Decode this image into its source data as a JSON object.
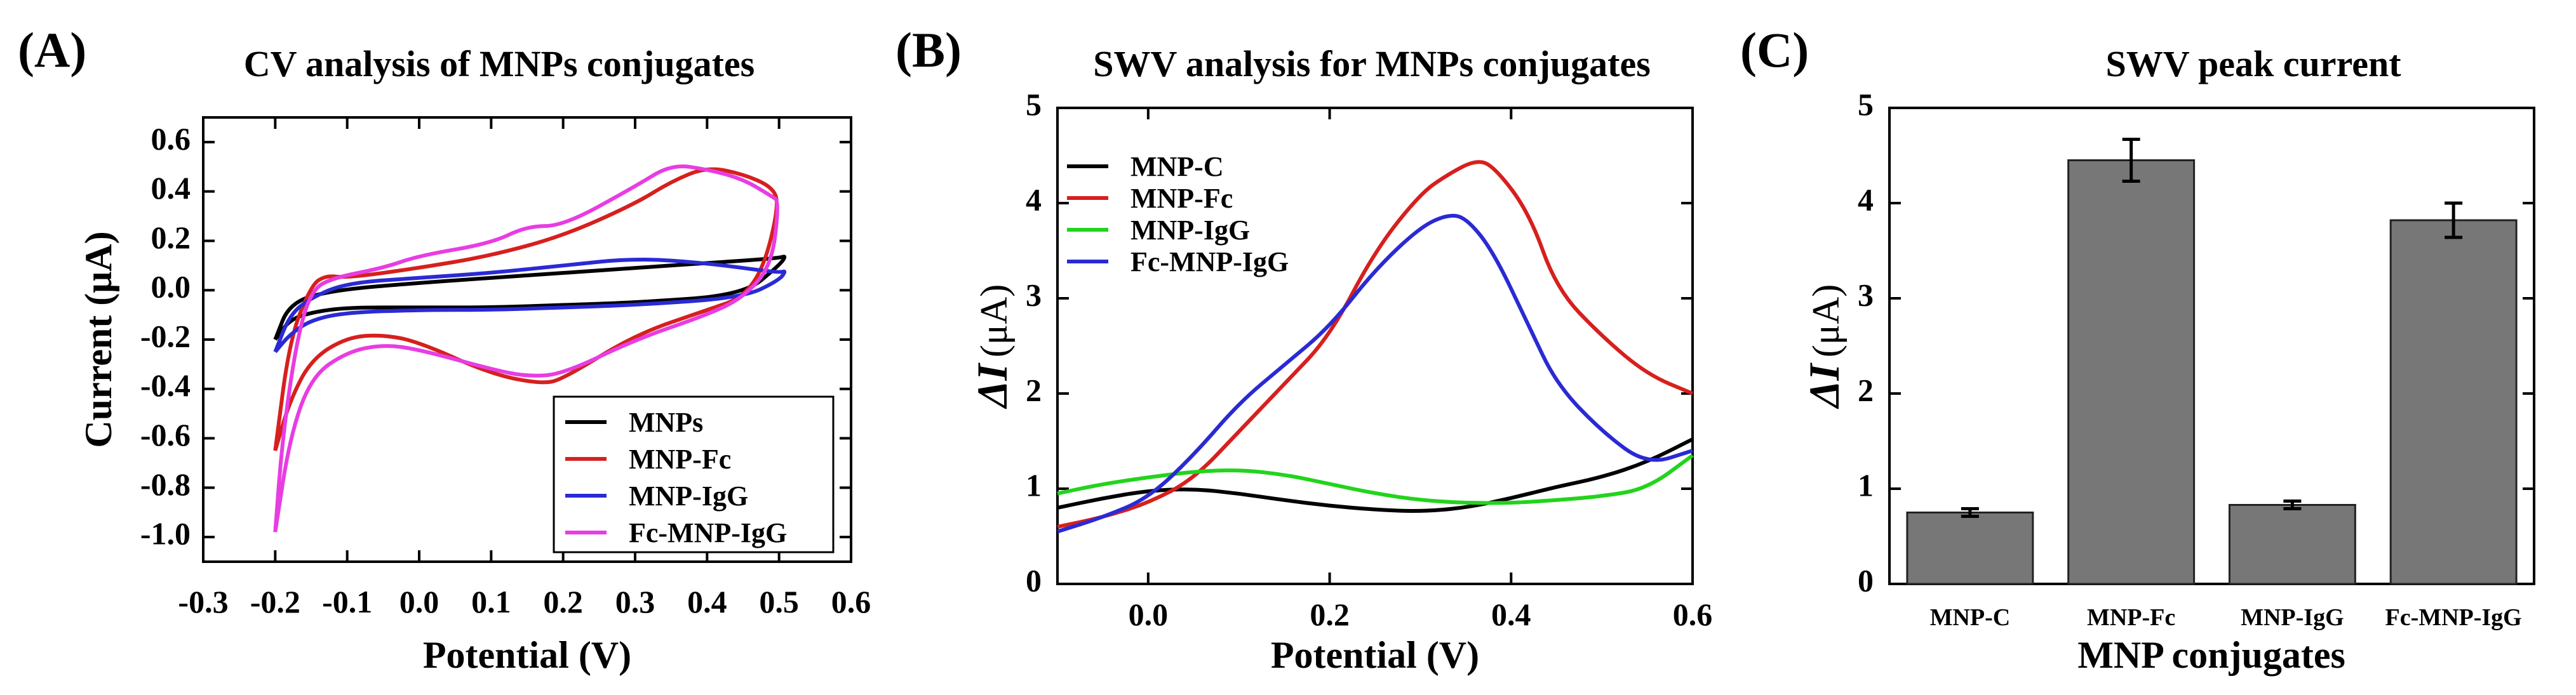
{
  "panels": {
    "a": {
      "letter": "(A)"
    },
    "b": {
      "letter": "(B)"
    },
    "c": {
      "letter": "(C)"
    }
  },
  "chart_data": [
    {
      "type": "line",
      "title": "CV analysis of MNPs conjugates",
      "xlabel": "Potential (V)",
      "ylabel": "Current (μA)",
      "xlim": [
        -0.3,
        0.6
      ],
      "ylim": [
        -1.1,
        0.7
      ],
      "xticks": [
        "-0.3",
        "-0.2",
        "-0.1",
        "0.0",
        "0.1",
        "0.2",
        "0.3",
        "0.4",
        "0.5",
        "0.6"
      ],
      "yticks": [
        "0.6",
        "0.4",
        "0.2",
        "0.0",
        "-0.2",
        "-0.4",
        "-0.6",
        "-0.8",
        "-1.0"
      ],
      "legend_position": "bottom-right",
      "series": [
        {
          "name": "MNPs",
          "color": "#000000",
          "points": [
            [
              -0.2,
              -0.2
            ],
            [
              -0.18,
              -0.05
            ],
            [
              -0.12,
              0.0
            ],
            [
              0.0,
              0.03
            ],
            [
              0.1,
              0.05
            ],
            [
              0.2,
              0.07
            ],
            [
              0.3,
              0.09
            ],
            [
              0.4,
              0.11
            ],
            [
              0.5,
              0.13
            ],
            [
              0.51,
              0.14
            ],
            [
              0.5,
              0.1
            ],
            [
              0.45,
              -0.02
            ],
            [
              0.3,
              -0.05
            ],
            [
              0.2,
              -0.06
            ],
            [
              0.1,
              -0.07
            ],
            [
              0.0,
              -0.07
            ],
            [
              -0.1,
              -0.07
            ],
            [
              -0.15,
              -0.09
            ],
            [
              -0.18,
              -0.12
            ],
            [
              -0.2,
              -0.2
            ]
          ]
        },
        {
          "name": "MNP-Fc",
          "color": "#d6201e",
          "points": [
            [
              -0.2,
              -0.65
            ],
            [
              -0.18,
              -0.2
            ],
            [
              -0.15,
              0.02
            ],
            [
              -0.13,
              0.06
            ],
            [
              -0.1,
              0.05
            ],
            [
              0.0,
              0.09
            ],
            [
              0.1,
              0.14
            ],
            [
              0.2,
              0.22
            ],
            [
              0.3,
              0.35
            ],
            [
              0.35,
              0.44
            ],
            [
              0.4,
              0.5
            ],
            [
              0.45,
              0.47
            ],
            [
              0.49,
              0.42
            ],
            [
              0.5,
              0.35
            ],
            [
              0.48,
              0.1
            ],
            [
              0.45,
              -0.03
            ],
            [
              0.4,
              -0.08
            ],
            [
              0.3,
              -0.18
            ],
            [
              0.2,
              -0.36
            ],
            [
              0.17,
              -0.38
            ],
            [
              0.1,
              -0.34
            ],
            [
              0.0,
              -0.21
            ],
            [
              -0.05,
              -0.18
            ],
            [
              -0.1,
              -0.19
            ],
            [
              -0.15,
              -0.28
            ],
            [
              -0.18,
              -0.45
            ],
            [
              -0.2,
              -0.65
            ]
          ]
        },
        {
          "name": "MNP-IgG",
          "color": "#2a2ad4",
          "points": [
            [
              -0.2,
              -0.25
            ],
            [
              -0.18,
              -0.1
            ],
            [
              -0.15,
              -0.03
            ],
            [
              -0.1,
              0.03
            ],
            [
              0.0,
              0.05
            ],
            [
              0.1,
              0.07
            ],
            [
              0.2,
              0.1
            ],
            [
              0.3,
              0.13
            ],
            [
              0.4,
              0.11
            ],
            [
              0.5,
              0.07
            ],
            [
              0.51,
              0.08
            ],
            [
              0.5,
              0.04
            ],
            [
              0.45,
              -0.03
            ],
            [
              0.3,
              -0.06
            ],
            [
              0.2,
              -0.07
            ],
            [
              0.1,
              -0.08
            ],
            [
              0.0,
              -0.08
            ],
            [
              -0.1,
              -0.09
            ],
            [
              -0.15,
              -0.12
            ],
            [
              -0.18,
              -0.18
            ],
            [
              -0.2,
              -0.25
            ]
          ]
        },
        {
          "name": "Fc-MNP-IgG",
          "color": "#e83de2",
          "points": [
            [
              -0.2,
              -0.98
            ],
            [
              -0.19,
              -0.6
            ],
            [
              -0.17,
              -0.2
            ],
            [
              -0.15,
              0.0
            ],
            [
              -0.12,
              0.05
            ],
            [
              -0.05,
              0.09
            ],
            [
              0.0,
              0.14
            ],
            [
              0.1,
              0.19
            ],
            [
              0.15,
              0.26
            ],
            [
              0.2,
              0.26
            ],
            [
              0.3,
              0.42
            ],
            [
              0.35,
              0.51
            ],
            [
              0.4,
              0.49
            ],
            [
              0.45,
              0.45
            ],
            [
              0.49,
              0.38
            ],
            [
              0.5,
              0.36
            ],
            [
              0.49,
              0.1
            ],
            [
              0.45,
              -0.03
            ],
            [
              0.4,
              -0.1
            ],
            [
              0.3,
              -0.2
            ],
            [
              0.2,
              -0.34
            ],
            [
              0.15,
              -0.35
            ],
            [
              0.1,
              -0.32
            ],
            [
              0.0,
              -0.24
            ],
            [
              -0.05,
              -0.22
            ],
            [
              -0.1,
              -0.25
            ],
            [
              -0.15,
              -0.35
            ],
            [
              -0.18,
              -0.6
            ],
            [
              -0.2,
              -0.98
            ]
          ]
        }
      ]
    },
    {
      "type": "line",
      "title": "SWV analysis for MNPs conjugates",
      "xlabel": "Potential (V)",
      "ylabel": "ΔI (μA)",
      "ylabel_symbol": "ΔI",
      "ylabel_unit": "(μA)",
      "xlim": [
        -0.1,
        0.6
      ],
      "ylim": [
        0,
        5
      ],
      "xticks": [
        "0.0",
        "0.2",
        "0.4",
        "0.6"
      ],
      "yticks": [
        "0",
        "1",
        "2",
        "3",
        "4",
        "5"
      ],
      "legend_position": "top-left",
      "series": [
        {
          "name": "MNP-C",
          "color": "#000000",
          "points": [
            [
              -0.1,
              0.8
            ],
            [
              -0.05,
              0.9
            ],
            [
              0.0,
              0.98
            ],
            [
              0.05,
              1.0
            ],
            [
              0.1,
              0.95
            ],
            [
              0.15,
              0.88
            ],
            [
              0.2,
              0.82
            ],
            [
              0.25,
              0.78
            ],
            [
              0.3,
              0.76
            ],
            [
              0.35,
              0.8
            ],
            [
              0.4,
              0.9
            ],
            [
              0.45,
              1.02
            ],
            [
              0.5,
              1.12
            ],
            [
              0.55,
              1.28
            ],
            [
              0.6,
              1.52
            ]
          ]
        },
        {
          "name": "MNP-Fc",
          "color": "#d6201e",
          "points": [
            [
              -0.1,
              0.6
            ],
            [
              -0.05,
              0.7
            ],
            [
              0.0,
              0.85
            ],
            [
              0.05,
              1.1
            ],
            [
              0.1,
              1.6
            ],
            [
              0.15,
              2.1
            ],
            [
              0.2,
              2.6
            ],
            [
              0.25,
              3.5
            ],
            [
              0.3,
              4.1
            ],
            [
              0.33,
              4.3
            ],
            [
              0.36,
              4.45
            ],
            [
              0.38,
              4.4
            ],
            [
              0.42,
              3.9
            ],
            [
              0.45,
              3.1
            ],
            [
              0.5,
              2.6
            ],
            [
              0.55,
              2.2
            ],
            [
              0.6,
              2.0
            ]
          ]
        },
        {
          "name": "MNP-IgG",
          "color": "#22d41c",
          "points": [
            [
              -0.1,
              0.95
            ],
            [
              -0.05,
              1.05
            ],
            [
              0.0,
              1.12
            ],
            [
              0.05,
              1.18
            ],
            [
              0.1,
              1.2
            ],
            [
              0.15,
              1.15
            ],
            [
              0.2,
              1.05
            ],
            [
              0.25,
              0.95
            ],
            [
              0.3,
              0.88
            ],
            [
              0.35,
              0.85
            ],
            [
              0.4,
              0.85
            ],
            [
              0.45,
              0.88
            ],
            [
              0.5,
              0.92
            ],
            [
              0.55,
              1.0
            ],
            [
              0.6,
              1.35
            ]
          ]
        },
        {
          "name": "Fc-MNP-IgG",
          "color": "#2a2ad4",
          "points": [
            [
              -0.1,
              0.55
            ],
            [
              -0.05,
              0.7
            ],
            [
              0.0,
              0.9
            ],
            [
              0.05,
              1.35
            ],
            [
              0.1,
              1.9
            ],
            [
              0.15,
              2.3
            ],
            [
              0.2,
              2.7
            ],
            [
              0.25,
              3.3
            ],
            [
              0.3,
              3.75
            ],
            [
              0.33,
              3.88
            ],
            [
              0.35,
              3.85
            ],
            [
              0.38,
              3.5
            ],
            [
              0.42,
              2.7
            ],
            [
              0.45,
              2.1
            ],
            [
              0.5,
              1.6
            ],
            [
              0.55,
              1.25
            ],
            [
              0.6,
              1.4
            ]
          ]
        }
      ]
    },
    {
      "type": "bar",
      "title": "SWV peak current",
      "xlabel": "MNP conjugates",
      "ylabel": "ΔI (μA)",
      "ylabel_symbol": "ΔI",
      "ylabel_unit": "(μA)",
      "ylim": [
        0,
        5
      ],
      "yticks": [
        "0",
        "1",
        "2",
        "3",
        "4",
        "5"
      ],
      "bar_color": "#777777",
      "categories": [
        "MNP-C",
        "MNP-Fc",
        "MNP-IgG",
        "Fc-MNP-IgG"
      ],
      "values": [
        0.75,
        4.45,
        0.83,
        3.82
      ],
      "errors": [
        0.04,
        0.22,
        0.04,
        0.18
      ]
    }
  ]
}
